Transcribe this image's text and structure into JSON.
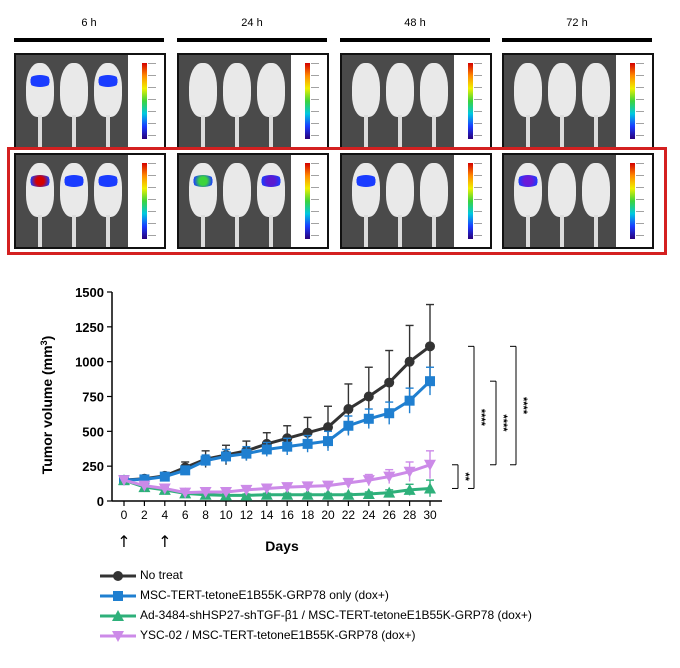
{
  "timepoints": [
    "6 h",
    "24 h",
    "48 h",
    "72 h"
  ],
  "chart_data": {
    "type": "line",
    "ylabel": "Tumor volume (mm",
    "ylabel_sup": "3",
    "ylabel_end": ")",
    "xlabel": "Days",
    "x": [
      0,
      2,
      4,
      6,
      8,
      10,
      12,
      14,
      16,
      18,
      20,
      22,
      24,
      26,
      28,
      30
    ],
    "ylim": [
      0,
      1500
    ],
    "yticks": [
      0,
      250,
      500,
      750,
      1000,
      1250,
      1500
    ],
    "injection_days": [
      0,
      4
    ],
    "injection_marker": "↑",
    "series": [
      {
        "name": "No treat",
        "color": "#333333",
        "marker": "circle",
        "values": [
          150,
          160,
          180,
          240,
          300,
          330,
          360,
          410,
          450,
          490,
          530,
          660,
          750,
          850,
          1000,
          1110
        ],
        "errors": [
          15,
          15,
          20,
          40,
          60,
          70,
          70,
          80,
          90,
          110,
          150,
          180,
          210,
          230,
          260,
          300
        ]
      },
      {
        "name": "MSC-TERT-tetoneE1B55K-GRP78 only (dox+)",
        "color": "#1f7fd0",
        "marker": "square",
        "values": [
          150,
          155,
          175,
          220,
          290,
          320,
          340,
          370,
          390,
          410,
          430,
          540,
          590,
          630,
          720,
          860
        ],
        "errors": [
          15,
          15,
          20,
          30,
          40,
          50,
          50,
          50,
          60,
          60,
          70,
          70,
          70,
          80,
          90,
          100
        ]
      },
      {
        "name": "Ad-3484-shHSP27-shTGF-β1 / MSC-TERT-tetoneE1B55K-GRP78 (dox+)",
        "color": "#2eb07a",
        "marker": "triangle",
        "values": [
          150,
          100,
          80,
          55,
          45,
          40,
          40,
          45,
          45,
          45,
          45,
          45,
          50,
          60,
          80,
          90
        ],
        "errors": [
          15,
          15,
          15,
          10,
          10,
          10,
          10,
          10,
          10,
          10,
          10,
          10,
          15,
          20,
          40,
          60
        ]
      },
      {
        "name": "YSC-02 / MSC-TERT-tetoneE1B55K-GRP78 (dox+)",
        "color": "#cc8ae8",
        "marker": "triangle-down",
        "values": [
          150,
          110,
          90,
          60,
          65,
          65,
          80,
          90,
          100,
          105,
          110,
          130,
          150,
          175,
          210,
          260
        ],
        "errors": [
          15,
          15,
          15,
          10,
          15,
          15,
          20,
          20,
          25,
          25,
          25,
          30,
          40,
          50,
          70,
          100
        ]
      }
    ],
    "significance": [
      {
        "label": "**",
        "from_series": 2,
        "to_series": 3
      },
      {
        "label": "****",
        "from_series": 0,
        "to_series": 2
      },
      {
        "label": "****",
        "from_series": 1,
        "to_series": 3
      },
      {
        "label": "****",
        "from_series": 0,
        "to_series": 3
      }
    ]
  }
}
